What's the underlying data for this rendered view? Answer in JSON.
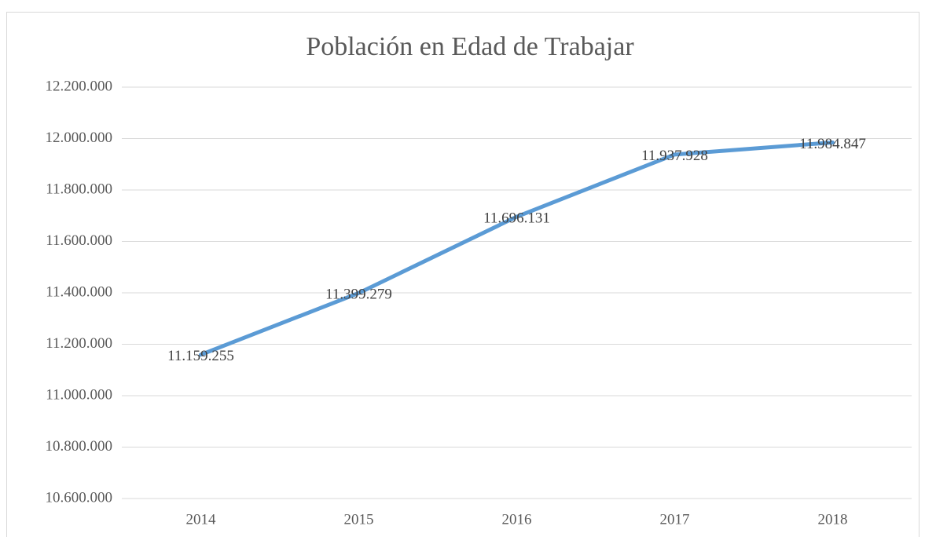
{
  "chart_data": {
    "type": "line",
    "title": "Población en Edad de Trabajar",
    "categories": [
      "2014",
      "2015",
      "2016",
      "2017",
      "2018"
    ],
    "series": [
      {
        "name": null,
        "color": "#5b9bd5",
        "values": [
          11159255,
          11399279,
          11696131,
          11937928,
          11984847
        ],
        "value_labels": [
          "11.159.255",
          "11.399.279",
          "11.696.131",
          "11.937.928",
          "11.984.847"
        ]
      }
    ],
    "ylim": [
      10600000,
      12200000
    ],
    "yticks": [
      {
        "value": 10600000,
        "label": "10.600.000"
      },
      {
        "value": 10800000,
        "label": "10.800.000"
      },
      {
        "value": 11000000,
        "label": "11.000.000"
      },
      {
        "value": 11200000,
        "label": "11.200.000"
      },
      {
        "value": 11400000,
        "label": "11.400.000"
      },
      {
        "value": 11600000,
        "label": "11.600.000"
      },
      {
        "value": 11800000,
        "label": "11.800.000"
      },
      {
        "value": 12000000,
        "label": "12.000.000"
      },
      {
        "value": 12200000,
        "label": "12.200.000"
      }
    ],
    "grid": true
  }
}
